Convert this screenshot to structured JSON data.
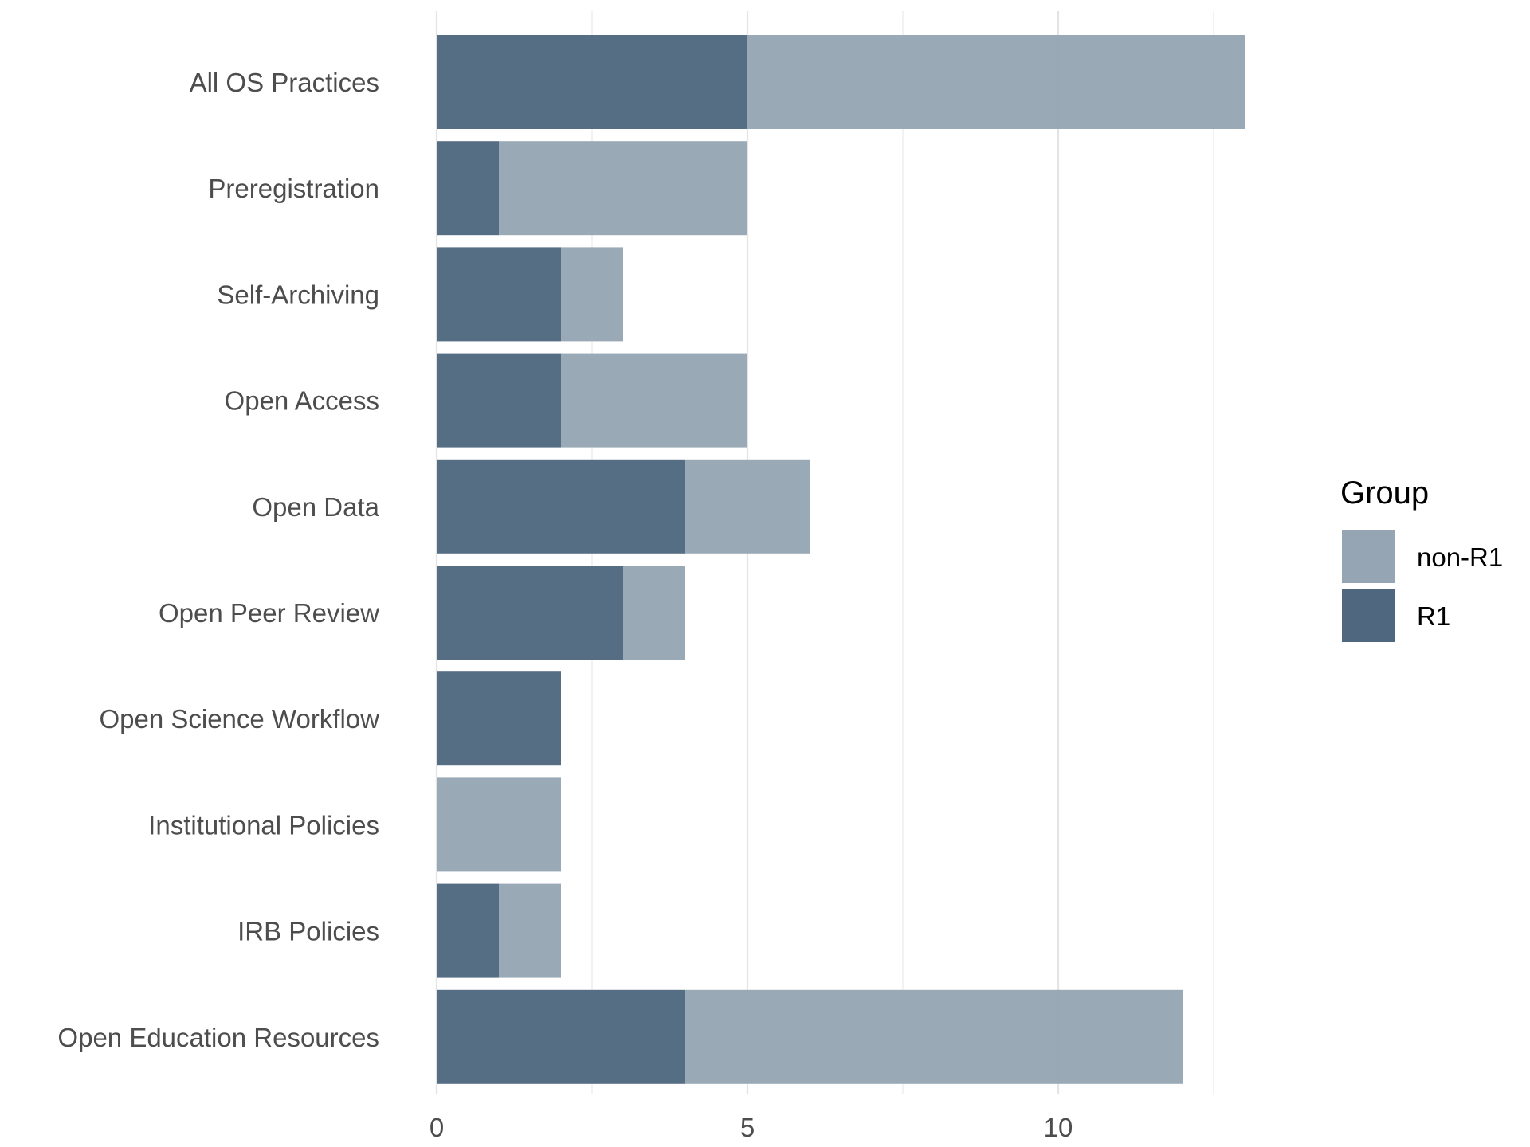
{
  "chart_data": {
    "type": "bar",
    "orientation": "horizontal",
    "stacked": true,
    "categories": [
      "All OS Practices",
      "Preregistration",
      "Self-Archiving",
      "Open Access",
      "Open Data",
      "Open Peer Review",
      "Open Science Workflow",
      "Institutional Policies",
      "IRB Policies",
      "Open Education Resources"
    ],
    "series": [
      {
        "name": "R1",
        "color": "#4f687f",
        "values": [
          5,
          1,
          2,
          2,
          4,
          3,
          2,
          0,
          1,
          4
        ]
      },
      {
        "name": "non-R1",
        "color": "#96a5b3",
        "values": [
          8,
          4,
          1,
          3,
          2,
          1,
          0,
          2,
          1,
          8
        ]
      }
    ],
    "xlim": [
      0,
      13
    ],
    "xticks": [
      "0",
      "5",
      "10"
    ],
    "title": "",
    "xlabel": "",
    "ylabel": "",
    "grid": true,
    "legend": {
      "title": "Group",
      "position": "right",
      "entries": [
        {
          "label": "non-R1",
          "color": "#96a5b3"
        },
        {
          "label": "R1",
          "color": "#4f687f"
        }
      ]
    }
  }
}
